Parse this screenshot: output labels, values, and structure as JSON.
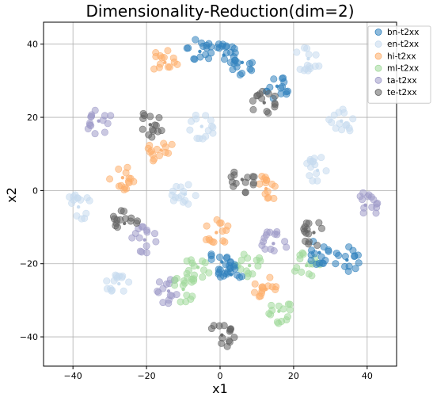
{
  "chart_data": {
    "type": "scatter",
    "title": "Dimensionality-Reduction(dim=2)",
    "xlabel": "x1",
    "ylabel": "x2",
    "xlim": [
      -48,
      48
    ],
    "ylim": [
      -48,
      46
    ],
    "xticks": [
      -40,
      -20,
      0,
      20,
      40
    ],
    "yticks": [
      -40,
      -20,
      0,
      20,
      40
    ],
    "xtick_labels": [
      "−40",
      "−20",
      "0",
      "20",
      "40"
    ],
    "ytick_labels": [
      "−40",
      "−20",
      "0",
      "20",
      "40"
    ],
    "grid": true,
    "legend_position": "top-right",
    "series": [
      {
        "name": "bn-t2xx",
        "color": "#3182bd",
        "clusters": [
          {
            "x": -5.5,
            "y": 38.0
          },
          {
            "x": 1.0,
            "y": 37.0
          },
          {
            "x": 6.0,
            "y": 35.0
          },
          {
            "x": 0.5,
            "y": -19.5
          },
          {
            "x": 3.0,
            "y": -23.0
          },
          {
            "x": 15.5,
            "y": 28.5
          },
          {
            "x": 27.0,
            "y": -17.0
          },
          {
            "x": 34.5,
            "y": -19.0
          }
        ]
      },
      {
        "name": "en-t2xx",
        "color": "#c6dbef",
        "clusters": [
          {
            "x": -38.5,
            "y": -4.5
          },
          {
            "x": -27.5,
            "y": -25.5
          },
          {
            "x": -9.5,
            "y": -1.0
          },
          {
            "x": -5.0,
            "y": 17.5
          },
          {
            "x": 26.5,
            "y": 5.5
          },
          {
            "x": 33.0,
            "y": 19.0
          },
          {
            "x": 24.0,
            "y": 36.0
          }
        ]
      },
      {
        "name": "hi-t2xx",
        "color": "#fdae6b",
        "clusters": [
          {
            "x": -15.0,
            "y": 35.0
          },
          {
            "x": -26.5,
            "y": 3.5
          },
          {
            "x": -16.0,
            "y": 11.0
          },
          {
            "x": -1.0,
            "y": -11.5
          },
          {
            "x": 12.5,
            "y": 0.5
          },
          {
            "x": 12.5,
            "y": -27.0
          }
        ]
      },
      {
        "name": "ml-t2xx",
        "color": "#a1d99b",
        "clusters": [
          {
            "x": -6.0,
            "y": -21.0
          },
          {
            "x": -10.0,
            "y": -27.0
          },
          {
            "x": 8.0,
            "y": -20.5
          },
          {
            "x": 23.5,
            "y": -20.5
          },
          {
            "x": 16.0,
            "y": -33.0
          }
        ]
      },
      {
        "name": "ta-t2xx",
        "color": "#9e9ac8",
        "clusters": [
          {
            "x": -33.0,
            "y": 19.0
          },
          {
            "x": -20.5,
            "y": -13.5
          },
          {
            "x": -14.0,
            "y": -27.5
          },
          {
            "x": 14.5,
            "y": -14.5
          },
          {
            "x": 39.5,
            "y": -4.0
          }
        ]
      },
      {
        "name": "te-t2xx",
        "color": "#636363",
        "clusters": [
          {
            "x": -19.0,
            "y": 18.0
          },
          {
            "x": -26.0,
            "y": -9.0
          },
          {
            "x": 6.0,
            "y": 3.0
          },
          {
            "x": 12.0,
            "y": 24.0
          },
          {
            "x": 25.5,
            "y": -11.5
          },
          {
            "x": 0.5,
            "y": -39.5
          }
        ]
      }
    ]
  }
}
